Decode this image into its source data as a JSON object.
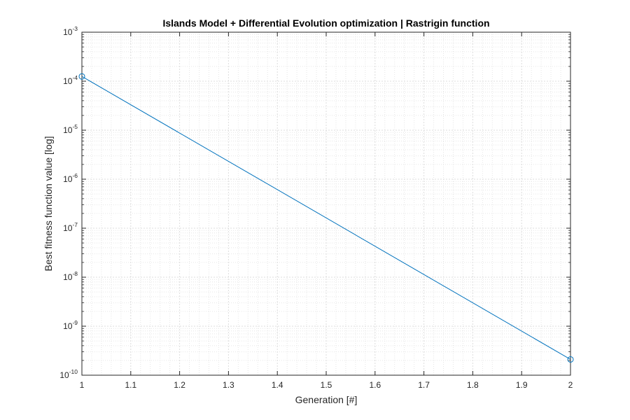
{
  "chart_data": {
    "type": "line",
    "title": "Islands Model + Differential Evolution optimization | Rastrigin function",
    "xlabel": "Generation [#]",
    "ylabel": "Best fitness function value [log]",
    "yscale": "log",
    "xlim": [
      1,
      2
    ],
    "ylim_exponent": [
      -10,
      -3
    ],
    "x_ticks": [
      1,
      1.1,
      1.2,
      1.3,
      1.4,
      1.5,
      1.6,
      1.7,
      1.8,
      1.9,
      2
    ],
    "x_tick_labels": [
      "1",
      "1.1",
      "1.2",
      "1.3",
      "1.4",
      "1.5",
      "1.6",
      "1.7",
      "1.8",
      "1.9",
      "2"
    ],
    "y_tick_labels": [
      {
        "base": "10",
        "exp": "-10"
      },
      {
        "base": "10",
        "exp": "-9"
      },
      {
        "base": "10",
        "exp": "-8"
      },
      {
        "base": "10",
        "exp": "-7"
      },
      {
        "base": "10",
        "exp": "-6"
      },
      {
        "base": "10",
        "exp": "-5"
      },
      {
        "base": "10",
        "exp": "-4"
      },
      {
        "base": "10",
        "exp": "-3"
      }
    ],
    "grid": true,
    "minor_grid": true,
    "box": true,
    "series": [
      {
        "x": [
          1,
          2
        ],
        "y": [
          0.000125,
          2.1e-10
        ],
        "marker": "circle",
        "color": "#0072BD"
      }
    ]
  }
}
